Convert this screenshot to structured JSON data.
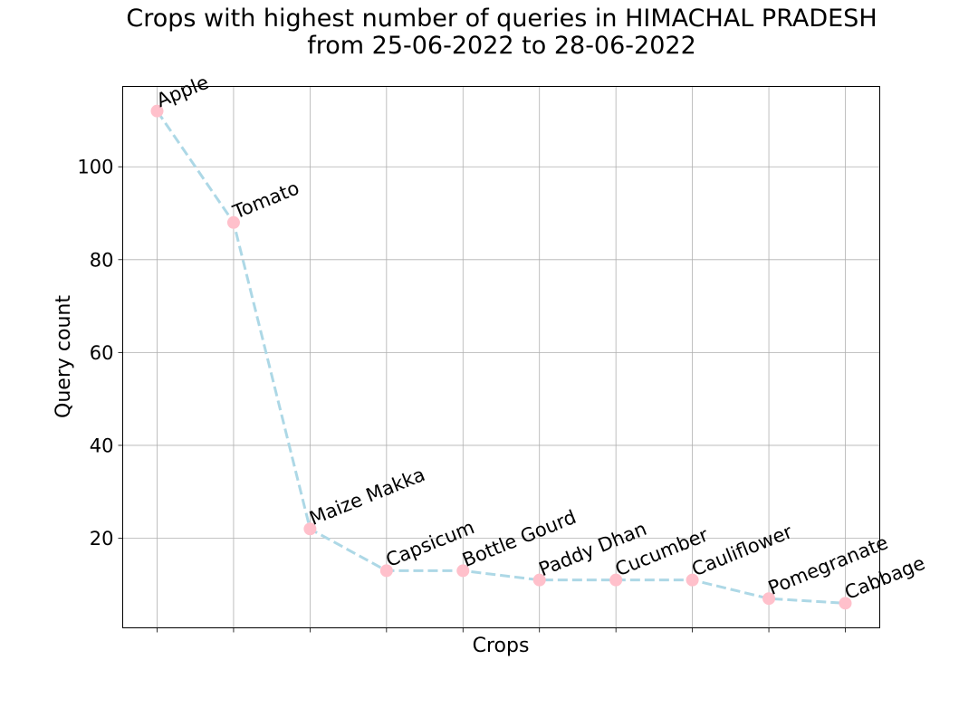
{
  "chart_data": {
    "type": "line",
    "title_lines": [
      "Crops with highest number of queries in HIMACHAL PRADESH",
      "from 25-06-2022 to 28-06-2022"
    ],
    "xlabel": "Crops",
    "ylabel": "Query count",
    "categories": [
      "Apple",
      "Tomato",
      "Maize Makka",
      "Capsicum",
      "Bottle Gourd",
      "Paddy Dhan",
      "Cucumber",
      "Cauliflower",
      "Pomegranate",
      "Cabbage"
    ],
    "values": [
      112,
      88,
      22,
      13,
      13,
      11,
      11,
      11,
      7,
      6
    ],
    "ylim": [
      0.7,
      117.3
    ],
    "yticks": [
      20,
      40,
      60,
      80,
      100
    ],
    "grid": true,
    "line_color": "#add8e6",
    "line_style": "dashed",
    "marker_color": "#ffc0cb",
    "show_x_tick_labels": false
  }
}
